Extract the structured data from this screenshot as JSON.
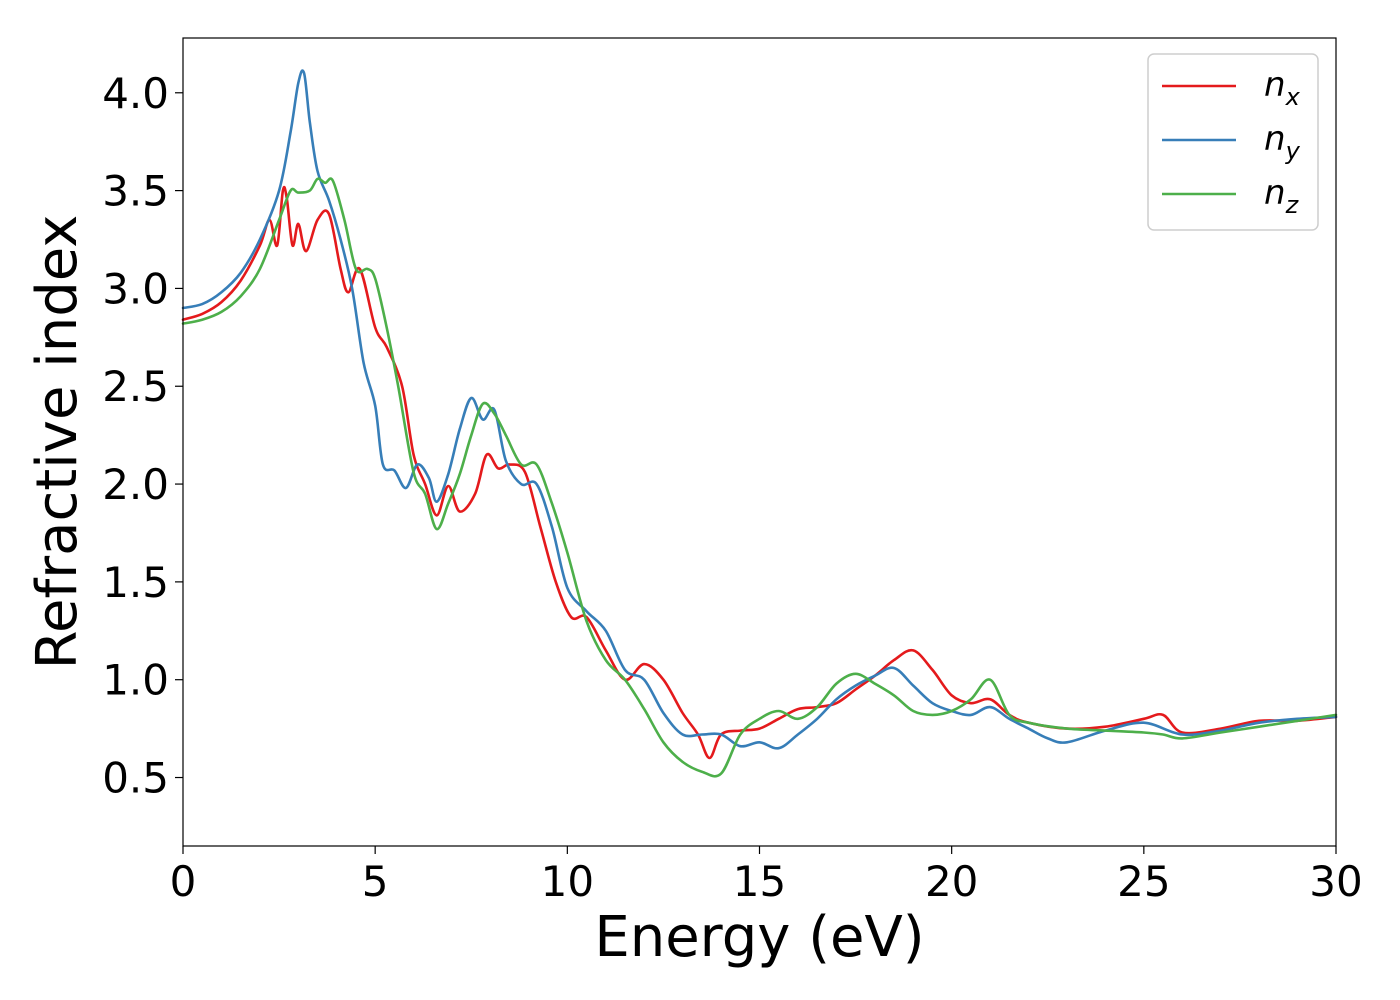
{
  "chart_data": {
    "type": "line",
    "xlabel": "Energy (eV)",
    "ylabel": "Refractive index",
    "xlim": [
      0,
      30
    ],
    "ylim": [
      0.15,
      4.28
    ],
    "xticks": [
      0,
      5,
      10,
      15,
      20,
      25,
      30
    ],
    "xtick_labels": [
      "0",
      "5",
      "10",
      "15",
      "20",
      "25",
      "30"
    ],
    "yticks": [
      0.5,
      1.0,
      1.5,
      2.0,
      2.5,
      3.0,
      3.5,
      4.0
    ],
    "ytick_labels": [
      "0.5",
      "1.0",
      "1.5",
      "2.0",
      "2.5",
      "3.0",
      "3.5",
      "4.0"
    ],
    "grid": false,
    "legend_position": "top-right",
    "series": [
      {
        "name": "n_x",
        "legend_base": "n",
        "legend_sub": "x",
        "color": "#e41a1c",
        "x": [
          0,
          0.5,
          1.0,
          1.5,
          2.0,
          2.25,
          2.45,
          2.6,
          2.7,
          2.85,
          3.0,
          3.2,
          3.5,
          3.8,
          4.1,
          4.3,
          4.6,
          5.0,
          5.3,
          5.7,
          6.0,
          6.3,
          6.6,
          6.9,
          7.2,
          7.6,
          7.9,
          8.2,
          8.5,
          8.9,
          9.3,
          9.7,
          10.1,
          10.5,
          11.0,
          11.5,
          12.0,
          12.5,
          13.0,
          13.4,
          13.7,
          14.0,
          14.5,
          15.0,
          15.5,
          16.0,
          16.5,
          17.0,
          17.5,
          18.0,
          18.5,
          19.0,
          19.5,
          20.0,
          20.5,
          21.0,
          21.5,
          22.0,
          23.0,
          24.0,
          25.0,
          25.5,
          26.0,
          27.0,
          28.0,
          29.0,
          30.0
        ],
        "y": [
          2.84,
          2.87,
          2.93,
          3.04,
          3.22,
          3.35,
          3.22,
          3.5,
          3.46,
          3.22,
          3.33,
          3.19,
          3.35,
          3.38,
          3.1,
          2.98,
          3.1,
          2.8,
          2.7,
          2.5,
          2.15,
          2.0,
          1.84,
          1.99,
          1.86,
          1.95,
          2.15,
          2.08,
          2.1,
          2.06,
          1.78,
          1.5,
          1.32,
          1.32,
          1.15,
          1.0,
          1.08,
          1.0,
          0.83,
          0.72,
          0.6,
          0.72,
          0.74,
          0.75,
          0.8,
          0.85,
          0.86,
          0.88,
          0.95,
          1.02,
          1.1,
          1.15,
          1.05,
          0.92,
          0.88,
          0.9,
          0.82,
          0.78,
          0.75,
          0.76,
          0.8,
          0.82,
          0.73,
          0.75,
          0.79,
          0.79,
          0.81
        ]
      },
      {
        "name": "n_y",
        "legend_base": "n",
        "legend_sub": "y",
        "color": "#377eb8",
        "x": [
          0,
          0.5,
          1.0,
          1.5,
          2.0,
          2.5,
          2.8,
          3.0,
          3.15,
          3.3,
          3.5,
          3.8,
          4.1,
          4.4,
          4.7,
          5.0,
          5.2,
          5.5,
          5.8,
          6.1,
          6.4,
          6.6,
          6.9,
          7.2,
          7.5,
          7.8,
          8.1,
          8.4,
          8.8,
          9.2,
          9.6,
          10.0,
          10.5,
          11.0,
          11.5,
          12.0,
          12.5,
          13.0,
          13.5,
          14.0,
          14.5,
          15.0,
          15.5,
          16.0,
          16.5,
          17.0,
          17.5,
          18.0,
          18.5,
          19.0,
          19.5,
          20.0,
          20.5,
          21.0,
          21.5,
          22.0,
          22.5,
          23.0,
          24.0,
          25.0,
          26.0,
          27.0,
          28.0,
          29.0,
          30.0
        ],
        "y": [
          2.9,
          2.92,
          2.98,
          3.08,
          3.25,
          3.5,
          3.8,
          4.05,
          4.1,
          3.85,
          3.6,
          3.45,
          3.25,
          3.0,
          2.62,
          2.4,
          2.1,
          2.07,
          1.98,
          2.1,
          2.03,
          1.91,
          2.05,
          2.28,
          2.44,
          2.33,
          2.38,
          2.12,
          2.0,
          2.0,
          1.78,
          1.47,
          1.35,
          1.25,
          1.05,
          1.0,
          0.83,
          0.72,
          0.72,
          0.72,
          0.66,
          0.68,
          0.65,
          0.72,
          0.8,
          0.9,
          0.97,
          1.02,
          1.06,
          0.97,
          0.88,
          0.84,
          0.82,
          0.86,
          0.8,
          0.75,
          0.7,
          0.68,
          0.74,
          0.78,
          0.72,
          0.74,
          0.78,
          0.8,
          0.81
        ]
      },
      {
        "name": "n_z",
        "legend_base": "n",
        "legend_sub": "z",
        "color": "#4daf4a",
        "x": [
          0,
          0.5,
          1.0,
          1.5,
          2.0,
          2.5,
          2.8,
          3.0,
          3.3,
          3.5,
          3.7,
          3.9,
          4.2,
          4.5,
          4.8,
          5.0,
          5.3,
          5.6,
          6.0,
          6.3,
          6.6,
          6.9,
          7.2,
          7.5,
          7.8,
          8.1,
          8.4,
          8.8,
          9.2,
          9.6,
          10.0,
          10.5,
          11.0,
          11.5,
          12.0,
          12.5,
          13.0,
          13.5,
          14.0,
          14.5,
          15.0,
          15.5,
          16.0,
          16.5,
          17.0,
          17.5,
          18.0,
          18.5,
          19.0,
          19.5,
          20.0,
          20.5,
          21.0,
          21.5,
          22.0,
          23.0,
          24.0,
          25.0,
          25.5,
          26.0,
          27.0,
          28.0,
          29.0,
          30.0
        ],
        "y": [
          2.82,
          2.84,
          2.88,
          2.96,
          3.1,
          3.35,
          3.5,
          3.49,
          3.5,
          3.56,
          3.54,
          3.55,
          3.35,
          3.1,
          3.1,
          3.05,
          2.8,
          2.5,
          2.06,
          1.95,
          1.77,
          1.9,
          2.05,
          2.25,
          2.41,
          2.36,
          2.25,
          2.1,
          2.1,
          1.9,
          1.65,
          1.3,
          1.1,
          1.0,
          0.85,
          0.68,
          0.58,
          0.53,
          0.52,
          0.72,
          0.8,
          0.84,
          0.8,
          0.86,
          0.98,
          1.03,
          0.98,
          0.92,
          0.84,
          0.82,
          0.84,
          0.9,
          1.0,
          0.82,
          0.78,
          0.75,
          0.74,
          0.73,
          0.72,
          0.7,
          0.73,
          0.76,
          0.79,
          0.82
        ]
      }
    ]
  }
}
